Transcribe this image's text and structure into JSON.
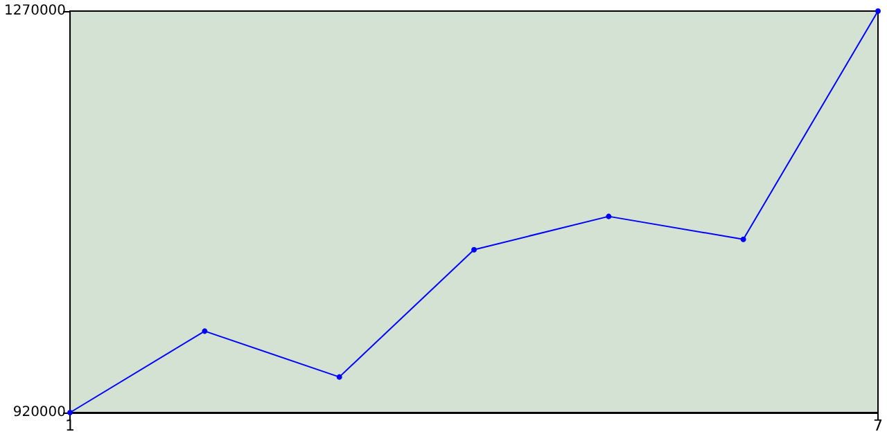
{
  "chart_data": {
    "type": "line",
    "x": [
      1,
      2,
      3,
      4,
      5,
      6,
      7
    ],
    "series": [
      {
        "color": "#0000ff",
        "values": [
          920000,
          991000,
          951000,
          1062000,
          1091000,
          1071000,
          1270000
        ]
      }
    ],
    "xlim": [
      1,
      7
    ],
    "ylim": [
      920000,
      1270000
    ],
    "xticks": [
      1,
      7
    ],
    "yticks": [
      920000,
      1270000
    ],
    "marker": "circle",
    "line_style": "solid"
  }
}
